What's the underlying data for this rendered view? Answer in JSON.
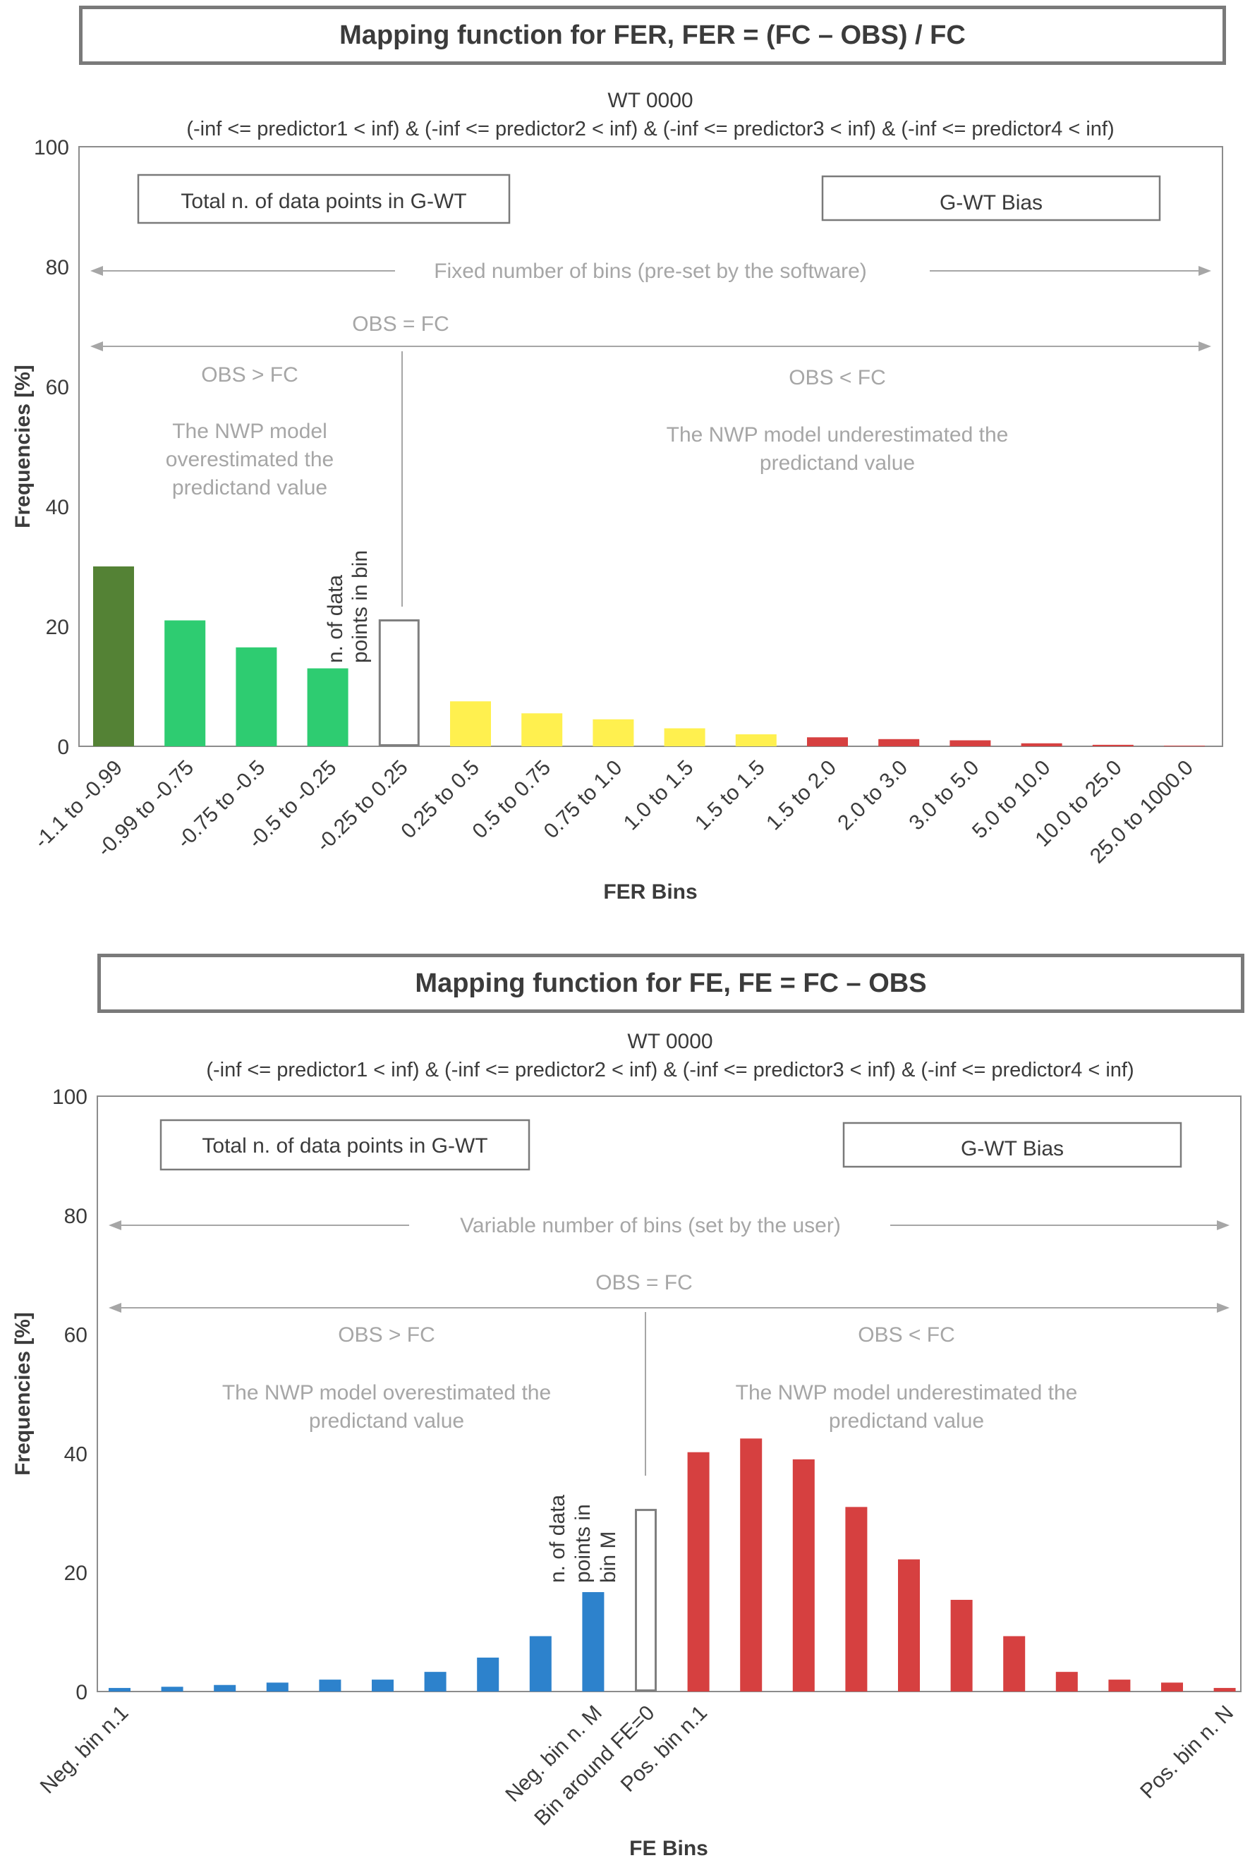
{
  "panels": [
    {
      "heading": "Mapping function for FER,  FER = (FC – OBS) / FC",
      "wt_label": "WT 0000",
      "condition": "(-inf <= predictor1  < inf) & (-inf <= predictor2  < inf) & (-inf <= predictor3  < inf)  & (-inf <= predictor4  < inf)",
      "box_left": "Total  n.  of data points  in G-WT",
      "box_right": "G-WT Bias",
      "bins_note": "Fixed  number  of bins  (pre-set by the software)",
      "obs_eq_fc": "OBS = FC",
      "obs_gt_fc": "OBS > FC",
      "obs_lt_fc": "OBS < FC",
      "over_text": [
        "The NWP  model",
        "overestimated  the",
        "predictand  value"
      ],
      "under_text": [
        "The NWP model  underestimated  the",
        "predictand  value"
      ],
      "bar_note": [
        "n. of data",
        "points in bin"
      ]
    },
    {
      "heading": "Mapping function for FE,  FE = FC – OBS",
      "wt_label": "WT 0000",
      "condition": "(-inf <= predictor1  < inf) & (-inf <= predictor2  < inf) & (-inf <= predictor3  < inf)  & (-inf <= predictor4  < inf)",
      "box_left": "Total  n.  of data points  in G-WT",
      "box_right": "G-WT Bias",
      "bins_note": "Variable  number  of bins  (set by the user)",
      "obs_eq_fc": "OBS = FC",
      "obs_gt_fc": "OBS > FC",
      "obs_lt_fc": "OBS < FC",
      "over_text": [
        "The NWP  model  overestimated  the",
        "predictand  value"
      ],
      "under_text": [
        "The NWP model  underestimated  the",
        "predictand  value"
      ],
      "bar_note": [
        "n. of data",
        "points in",
        "bin M"
      ]
    }
  ],
  "colors": {
    "dark_green": "#548235",
    "green": "#2ecc71",
    "yellow": "#fff04f",
    "red": "#d64040",
    "blue": "#2d82cc",
    "empty_bar_border": "#7f7f7f",
    "annotation_grey": "#a6a6a6"
  },
  "chart_data": [
    {
      "type": "bar",
      "title": "WT 0000",
      "xlabel": "FER Bins",
      "ylabel": "Frequencies [%]",
      "ylim": [
        0,
        100
      ],
      "yticks": [
        0,
        20,
        40,
        60,
        80,
        100
      ],
      "grid": false,
      "categories": [
        "-1.1 to -0.99",
        "-0.99 to -0.75",
        "-0.75 to -0.5",
        "-0.5 to -0.25",
        "-0.25 to 0.25",
        "0.25 to 0.5",
        "0.5 to 0.75",
        "0.75 to 1.0",
        "1.0 to 1.5",
        "1.5 to 1.5",
        "1.5 to 2.0",
        "2.0 to 3.0",
        "3.0 to 5.0",
        "5.0 to 10.0",
        "10.0 to 25.0",
        "25.0 to 1000.0"
      ],
      "values": [
        30,
        21,
        16.5,
        13,
        21,
        7.5,
        5.5,
        4.5,
        3,
        2,
        1.5,
        1.2,
        1,
        0.5,
        0.25,
        0.1
      ],
      "bar_colors": [
        "dark_green",
        "green",
        "green",
        "green",
        "empty",
        "yellow",
        "yellow",
        "yellow",
        "yellow",
        "yellow",
        "red",
        "red",
        "red",
        "red",
        "red",
        "red"
      ]
    },
    {
      "type": "bar",
      "title": "WT 0000",
      "xlabel": "FE Bins",
      "ylabel": "Frequencies [%]",
      "ylim": [
        0,
        100
      ],
      "yticks": [
        0,
        20,
        40,
        60,
        80,
        100
      ],
      "grid": false,
      "categories": [
        "Neg. bin n.1",
        "",
        "",
        "",
        "",
        "",
        "",
        "",
        "",
        "Neg. bin n. M",
        "Bin around FE=0",
        "Pos. bin n.1",
        "",
        "",
        "",
        "",
        "",
        "",
        "",
        "",
        "",
        "Pos. bin n. N"
      ],
      "values": [
        0.6,
        0.8,
        1.1,
        1.5,
        2.0,
        2.0,
        3.3,
        5.7,
        9.3,
        16.7,
        30.5,
        40.2,
        42.5,
        39.0,
        31.0,
        22.2,
        15.4,
        9.3,
        3.3,
        2.0,
        1.5,
        0.6
      ],
      "bar_colors": [
        "blue",
        "blue",
        "blue",
        "blue",
        "blue",
        "blue",
        "blue",
        "blue",
        "blue",
        "blue",
        "empty",
        "red",
        "red",
        "red",
        "red",
        "red",
        "red",
        "red",
        "red",
        "red",
        "red",
        "red"
      ]
    }
  ]
}
